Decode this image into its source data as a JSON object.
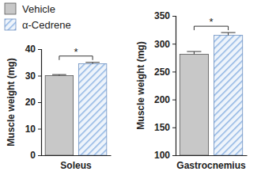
{
  "chart_data": [
    {
      "type": "bar",
      "y_label": "Muscle weight (mg)",
      "categories": [
        "Soleus"
      ],
      "series": [
        {
          "name": "Vehicle",
          "color": "#c8c8c8",
          "values": [
            30
          ],
          "errors": [
            0.4
          ]
        },
        {
          "name": "α-Cedrene",
          "color": "#8fb4e3",
          "values": [
            34.5
          ],
          "errors": [
            0.5
          ]
        }
      ],
      "ylim": [
        0,
        40
      ],
      "yticks": [
        0,
        10,
        20,
        30,
        40
      ],
      "legend": "top-left",
      "annotation": "*"
    },
    {
      "type": "bar",
      "y_label": "Muscle weight (mg)",
      "categories": [
        "Gastrocnemius"
      ],
      "series": [
        {
          "color": "#c8c8c8",
          "values": [
            281
          ],
          "errors": [
            5
          ]
        },
        {
          "color": "#8fb4e3",
          "values": [
            315
          ],
          "errors": [
            5
          ]
        }
      ],
      "ylim": [
        100,
        350
      ],
      "yticks": [
        100,
        150,
        200,
        250,
        300,
        350
      ],
      "annotation": "*"
    }
  ]
}
